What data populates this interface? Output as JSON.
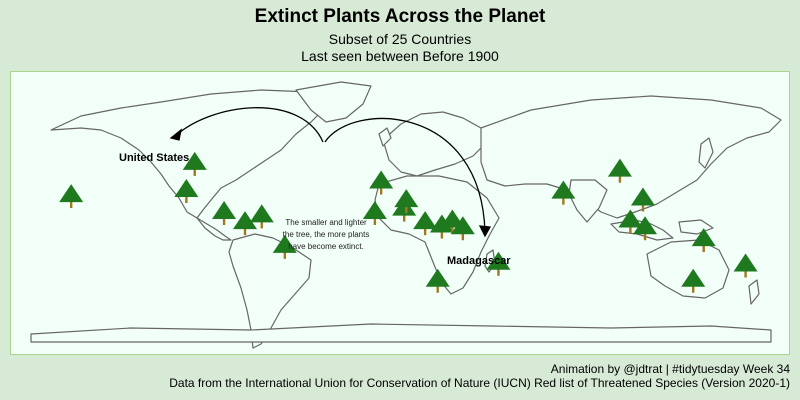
{
  "header": {
    "title": "Extinct Plants Across the Planet",
    "subtitle_line1": "Subset of 25 Countries",
    "subtitle_line2": "Last seen between Before 1900"
  },
  "annotations": {
    "note": "The smaller and lighter the tree, the more plants have become extinct.",
    "label_us": "United States",
    "label_madagascar": "Madagascar"
  },
  "footer": {
    "credit": "Animation by @jdtrat | #tidytuesday Week 34",
    "source": "Data from the International Union for Conservation of Nature (IUCN) Red list of Threatened Species (Version 2020-1)"
  },
  "colors": {
    "background": "#d7ead6",
    "panel": "#f2fff8",
    "panel_border": "#a9d48e",
    "country_outline": "#666666",
    "tree_foliage": "#1f7a1f",
    "tree_trunk": "#a0781e"
  },
  "map_data": {
    "projection": "equirectangular",
    "tree_count": 25,
    "tree_locations": [
      {
        "lon": -98,
        "lat": 39
      },
      {
        "lon": -102,
        "lat": 23
      },
      {
        "lon": -157,
        "lat": 20
      },
      {
        "lon": -84,
        "lat": 10
      },
      {
        "lon": -74,
        "lat": 4
      },
      {
        "lon": -66,
        "lat": 8
      },
      {
        "lon": -55,
        "lat": -10
      },
      {
        "lon": -12,
        "lat": 10
      },
      {
        "lon": -9,
        "lat": 28
      },
      {
        "lon": 2,
        "lat": 12
      },
      {
        "lon": 3,
        "lat": 17
      },
      {
        "lon": 12,
        "lat": 4
      },
      {
        "lon": 20,
        "lat": 2
      },
      {
        "lon": 25,
        "lat": 5
      },
      {
        "lon": 30,
        "lat": 1
      },
      {
        "lon": 18,
        "lat": -30
      },
      {
        "lon": 47,
        "lat": -20
      },
      {
        "lon": 78,
        "lat": 22
      },
      {
        "lon": 105,
        "lat": 35
      },
      {
        "lon": 116,
        "lat": 18
      },
      {
        "lon": 110,
        "lat": 5
      },
      {
        "lon": 117,
        "lat": 1
      },
      {
        "lon": 145,
        "lat": -6
      },
      {
        "lon": 165,
        "lat": -21
      },
      {
        "lon": 140,
        "lat": -30
      }
    ]
  }
}
